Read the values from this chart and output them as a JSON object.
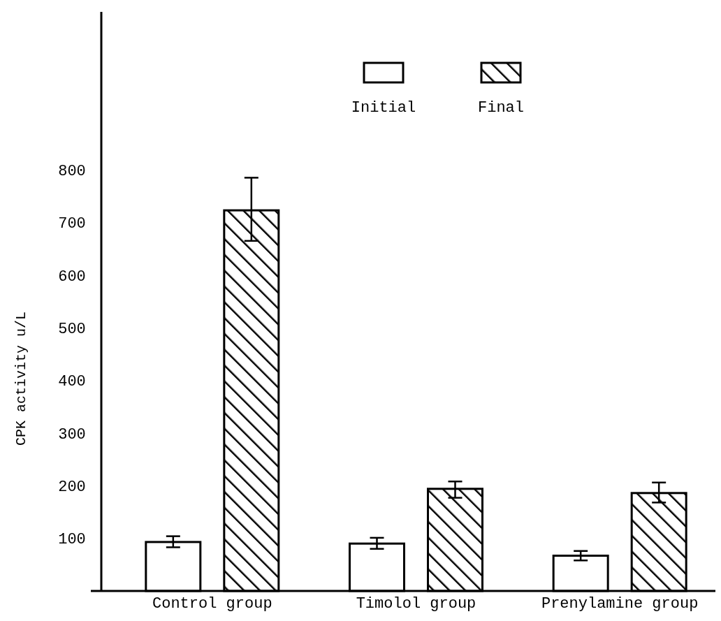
{
  "chart_data": {
    "type": "bar",
    "ylabel": "CPK activity u/L",
    "categories": [
      "Control group",
      "Timolol group",
      "Prenylamine group"
    ],
    "series": [
      {
        "name": "Initial",
        "color": "#ffffff",
        "values": [
          93,
          90,
          67
        ],
        "errors": [
          [
            83,
            104
          ],
          [
            80,
            101
          ],
          [
            58,
            76
          ]
        ]
      },
      {
        "name": "Final",
        "color": "#000000",
        "values": [
          723,
          194,
          186
        ],
        "errors": [
          [
            665,
            785
          ],
          [
            177,
            208
          ],
          [
            168,
            206
          ]
        ]
      }
    ],
    "ylim": [
      0,
      1100
    ],
    "yticks": [
      100,
      200,
      300,
      400,
      500,
      600,
      700,
      800
    ],
    "grid": false,
    "legend": "top"
  }
}
